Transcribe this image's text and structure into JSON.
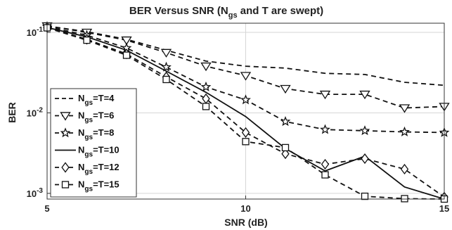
{
  "chart_data": {
    "type": "line",
    "title": {
      "main": "BER Versus SNR (N",
      "sub": "gs",
      "rest": " and T are swept)"
    },
    "xlabel": "SNR (dB)",
    "ylabel": "BER",
    "y_scale": "log",
    "x": [
      5,
      6,
      7,
      8,
      9,
      10,
      11,
      12,
      13,
      14,
      15
    ],
    "xlim": [
      5,
      15
    ],
    "ylim": [
      0.00085,
      0.13
    ],
    "xticks": [
      "5",
      "10",
      "15"
    ],
    "yticks": [
      {
        "base": "10",
        "exp": "-1",
        "value": 0.1
      },
      {
        "base": "10",
        "exp": "-2",
        "value": 0.01
      },
      {
        "base": "10",
        "exp": "-3",
        "value": 0.001
      }
    ],
    "grid": true,
    "legend_position": "bottom-left",
    "series": [
      {
        "label_main": "N",
        "label_sub": "gs",
        "label_rest": "=T=4",
        "dash": "dashed",
        "marker": "none",
        "values": [
          0.12,
          0.102,
          0.082,
          0.06,
          0.044,
          0.038,
          0.036,
          0.031,
          0.03,
          0.024,
          0.022
        ]
      },
      {
        "label_main": "N",
        "label_sub": "gs",
        "label_rest": "=T=6",
        "dash": "dashed",
        "marker": "triangle-down",
        "values": [
          0.12,
          0.1,
          0.08,
          0.056,
          0.038,
          0.029,
          0.02,
          0.017,
          0.017,
          0.0115,
          0.012
        ]
      },
      {
        "label_main": "N",
        "label_sub": "gs",
        "label_rest": "=T=8",
        "dash": "dashed",
        "marker": "star",
        "values": [
          0.118,
          0.092,
          0.064,
          0.037,
          0.021,
          0.0145,
          0.0078,
          0.0062,
          0.006,
          0.0058,
          0.0057
        ]
      },
      {
        "label_main": "N",
        "label_sub": "gs",
        "label_rest": "=T=10",
        "dash": "solid",
        "marker": "none",
        "values": [
          0.115,
          0.088,
          0.06,
          0.033,
          0.018,
          0.009,
          0.0036,
          0.0019,
          0.0029,
          0.0012,
          0.00085
        ]
      },
      {
        "label_main": "N",
        "label_sub": "gs",
        "label_rest": "=T=12",
        "dash": "dashed",
        "marker": "diamond",
        "values": [
          0.115,
          0.082,
          0.054,
          0.028,
          0.015,
          0.0057,
          0.0031,
          0.0023,
          0.0027,
          0.002,
          0.0009
        ]
      },
      {
        "label_main": "N",
        "label_sub": "gs",
        "label_rest": "=T=15",
        "dash": "dashed",
        "marker": "square",
        "values": [
          0.114,
          0.08,
          0.052,
          0.026,
          0.012,
          0.0044,
          0.0037,
          0.0017,
          0.00092,
          0.00086,
          0.00085
        ]
      }
    ]
  }
}
